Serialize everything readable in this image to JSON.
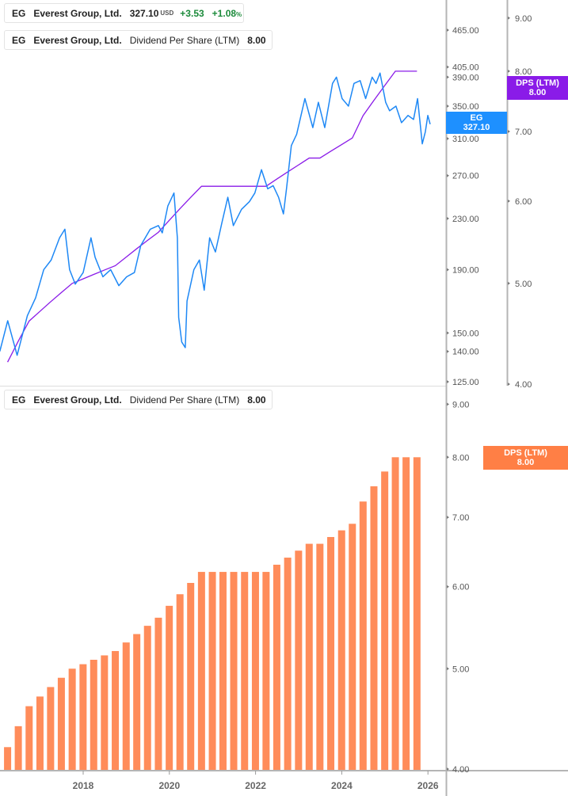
{
  "legends": {
    "price": {
      "ticker": "EG",
      "name": "Everest Group, Ltd.",
      "price": "327.10",
      "currency": "USD",
      "change": "+3.53",
      "change_pct": "+1.08",
      "pct_sign": "%",
      "color": "#1e88f5"
    },
    "dps_top": {
      "ticker": "EG",
      "name": "Everest Group, Ltd.",
      "metric": "Dividend Per Share (LTM)",
      "value": "8.00",
      "color": "#8a1be8"
    },
    "dps_bottom": {
      "ticker": "EG",
      "name": "Everest Group, Ltd.",
      "metric": "Dividend Per Share (LTM)",
      "value": "8.00",
      "color": "#ff8a57"
    }
  },
  "tags": {
    "price": {
      "label": "EG",
      "value": "327.10",
      "color": "#1e90ff"
    },
    "dps_top": {
      "label": "DPS (LTM)",
      "value": "8.00",
      "color": "#8a1be8"
    },
    "dps_bottom": {
      "label": "DPS (LTM)",
      "value": "8.00",
      "color": "#ff7f45"
    }
  },
  "chart_data": [
    {
      "type": "line",
      "pane": "top",
      "scale": "log",
      "x_axis": {
        "type": "date",
        "ticks": [
          "2018",
          "2020",
          "2022",
          "2024",
          "2026"
        ]
      },
      "y_axis_left": {
        "ticks": [
          "465.00",
          "405.00",
          "390.00",
          "350.00",
          "310.00",
          "270.00",
          "230.00",
          "190.00",
          "150.00",
          "140.00",
          "125.00"
        ],
        "tick_values": [
          465,
          405,
          390,
          350,
          310,
          270,
          230,
          190,
          150,
          140,
          125
        ]
      },
      "y_axis_right": {
        "ticks": [
          "9.00",
          "8.00",
          "7.00",
          "6.00",
          "5.00",
          "4.00"
        ],
        "tick_values": [
          9,
          8,
          7,
          6,
          5,
          4
        ]
      },
      "series": [
        {
          "name": "EG",
          "color": "#1e88f5",
          "axis": "left",
          "x": [
            "2016-01-25",
            "2016-04-01",
            "2016-06-20",
            "2016-09-15",
            "2016-11-24",
            "2017-02-01",
            "2017-04-05",
            "2017-06-15",
            "2017-07-30",
            "2017-09-08",
            "2017-10-26",
            "2018-01-01",
            "2018-03-08",
            "2018-04-12",
            "2018-06-17",
            "2018-08-22",
            "2018-10-30",
            "2019-01-04",
            "2019-03-11",
            "2019-05-04",
            "2019-07-23",
            "2019-09-30",
            "2019-11-02",
            "2019-12-19",
            "2020-02-09",
            "2020-03-09",
            "2020-03-20",
            "2020-04-15",
            "2020-05-15",
            "2020-05-30",
            "2020-07-27",
            "2020-09-12",
            "2020-10-23",
            "2020-12-08",
            "2021-01-26",
            "2021-03-21",
            "2021-05-11",
            "2021-06-27",
            "2021-09-04",
            "2021-11-10",
            "2021-12-26",
            "2022-02-20",
            "2022-04-14",
            "2022-05-30",
            "2022-07-15",
            "2022-08-25",
            "2022-09-20",
            "2022-10-31",
            "2022-12-15",
            "2023-02-23",
            "2023-05-01",
            "2023-06-17",
            "2023-08-10",
            "2023-10-15",
            "2023-11-17",
            "2024-01-04",
            "2024-02-27",
            "2024-04-14",
            "2024-06-05",
            "2024-07-22",
            "2024-09-15",
            "2024-10-18",
            "2024-11-21",
            "2025-01-08",
            "2025-02-10",
            "2025-04-05",
            "2025-05-22",
            "2025-07-16",
            "2025-09-01",
            "2025-10-05",
            "2025-11-14",
            "2025-12-10",
            "2025-12-31",
            "2026-01-20"
          ],
          "y": [
            140,
            157,
            138,
            160,
            171,
            190,
            197,
            214,
            221,
            190,
            180,
            188,
            214,
            199,
            185,
            190,
            179,
            185,
            188,
            208,
            221,
            224,
            218,
            241,
            253,
            214,
            159,
            145,
            142,
            169,
            190,
            197,
            176,
            214,
            203,
            226,
            249,
            224,
            238,
            245,
            253,
            276,
            257,
            260,
            249,
            234,
            257,
            302,
            315,
            360,
            323,
            355,
            323,
            381,
            390,
            360,
            350,
            381,
            385,
            360,
            390,
            381,
            396,
            355,
            344,
            350,
            329,
            338,
            333,
            360,
            304,
            318,
            338,
            327.1
          ]
        },
        {
          "name": "DPS (LTM)",
          "color": "#8a1be8",
          "axis": "right",
          "values_ref": "bars"
        }
      ]
    },
    {
      "type": "bar",
      "pane": "bottom",
      "scale": "log",
      "x_axis": {
        "type": "date",
        "ticks": [
          "2018",
          "2020",
          "2022",
          "2024",
          "2026"
        ]
      },
      "y_axis": {
        "ticks": [
          "9.00",
          "8.00",
          "7.00",
          "6.00",
          "5.00",
          "4.00"
        ],
        "tick_values": [
          9,
          8,
          7,
          6,
          5,
          4
        ]
      },
      "series": [
        {
          "name": "DPS (LTM)",
          "color": "#ff8c5a",
          "x": [
            "2016-03-31",
            "2016-06-30",
            "2016-09-30",
            "2016-12-31",
            "2017-03-31",
            "2017-06-30",
            "2017-09-30",
            "2017-12-31",
            "2018-03-31",
            "2018-06-30",
            "2018-09-30",
            "2018-12-31",
            "2019-03-31",
            "2019-06-30",
            "2019-09-30",
            "2019-12-31",
            "2020-03-31",
            "2020-06-30",
            "2020-09-30",
            "2020-12-31",
            "2021-03-31",
            "2021-06-30",
            "2021-09-30",
            "2021-12-31",
            "2022-03-31",
            "2022-06-30",
            "2022-09-30",
            "2022-12-31",
            "2023-03-31",
            "2023-06-30",
            "2023-09-30",
            "2023-12-31",
            "2024-03-31",
            "2024-06-30",
            "2024-09-30",
            "2024-12-31",
            "2025-03-31",
            "2025-06-30",
            "2025-09-30"
          ],
          "y": [
            4.2,
            4.4,
            4.6,
            4.7,
            4.8,
            4.9,
            5.0,
            5.05,
            5.1,
            5.15,
            5.2,
            5.3,
            5.4,
            5.5,
            5.6,
            5.75,
            5.9,
            6.05,
            6.2,
            6.2,
            6.2,
            6.2,
            6.2,
            6.2,
            6.2,
            6.3,
            6.4,
            6.5,
            6.6,
            6.6,
            6.7,
            6.8,
            6.9,
            7.25,
            7.5,
            7.75,
            8.0,
            8.0,
            8.0
          ]
        }
      ]
    }
  ]
}
